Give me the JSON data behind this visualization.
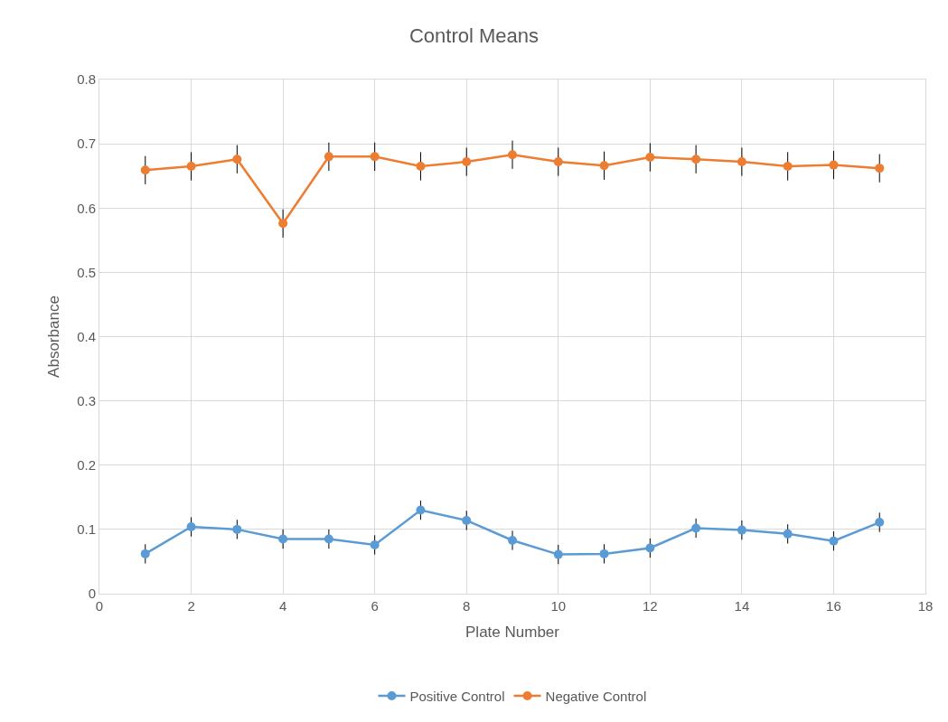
{
  "chart_data": {
    "type": "line",
    "title": "Control Means",
    "xlabel": "Plate Number",
    "ylabel": "Absorbance",
    "x": [
      1,
      2,
      3,
      4,
      5,
      6,
      7,
      8,
      9,
      10,
      11,
      12,
      13,
      14,
      15,
      16,
      17
    ],
    "series": [
      {
        "name": "Positive Control",
        "color": "#5b9bd5",
        "values": [
          0.062,
          0.104,
          0.1,
          0.085,
          0.085,
          0.076,
          0.13,
          0.114,
          0.083,
          0.061,
          0.062,
          0.071,
          0.102,
          0.099,
          0.093,
          0.082,
          0.111
        ],
        "errors": [
          0.015,
          0.015,
          0.015,
          0.015,
          0.015,
          0.015,
          0.015,
          0.015,
          0.015,
          0.015,
          0.015,
          0.015,
          0.015,
          0.015,
          0.015,
          0.015,
          0.015
        ]
      },
      {
        "name": "Negative Control",
        "color": "#ed7d31",
        "values": [
          0.659,
          0.665,
          0.676,
          0.576,
          0.68,
          0.68,
          0.665,
          0.672,
          0.683,
          0.672,
          0.666,
          0.679,
          0.676,
          0.672,
          0.665,
          0.667,
          0.662
        ],
        "errors": [
          0.022,
          0.022,
          0.022,
          0.022,
          0.022,
          0.022,
          0.022,
          0.022,
          0.022,
          0.022,
          0.022,
          0.022,
          0.022,
          0.022,
          0.022,
          0.022,
          0.022
        ]
      }
    ],
    "xlim": [
      0,
      18
    ],
    "xticks": [
      0,
      2,
      4,
      6,
      8,
      10,
      12,
      14,
      16,
      18
    ],
    "ylim": [
      0,
      0.8
    ],
    "yticks": [
      0,
      0.1,
      0.2,
      0.3,
      0.4,
      0.5,
      0.6,
      0.7,
      0.8
    ],
    "grid": true,
    "legend": "bottom",
    "marker": "circle",
    "line_style": "solid"
  }
}
